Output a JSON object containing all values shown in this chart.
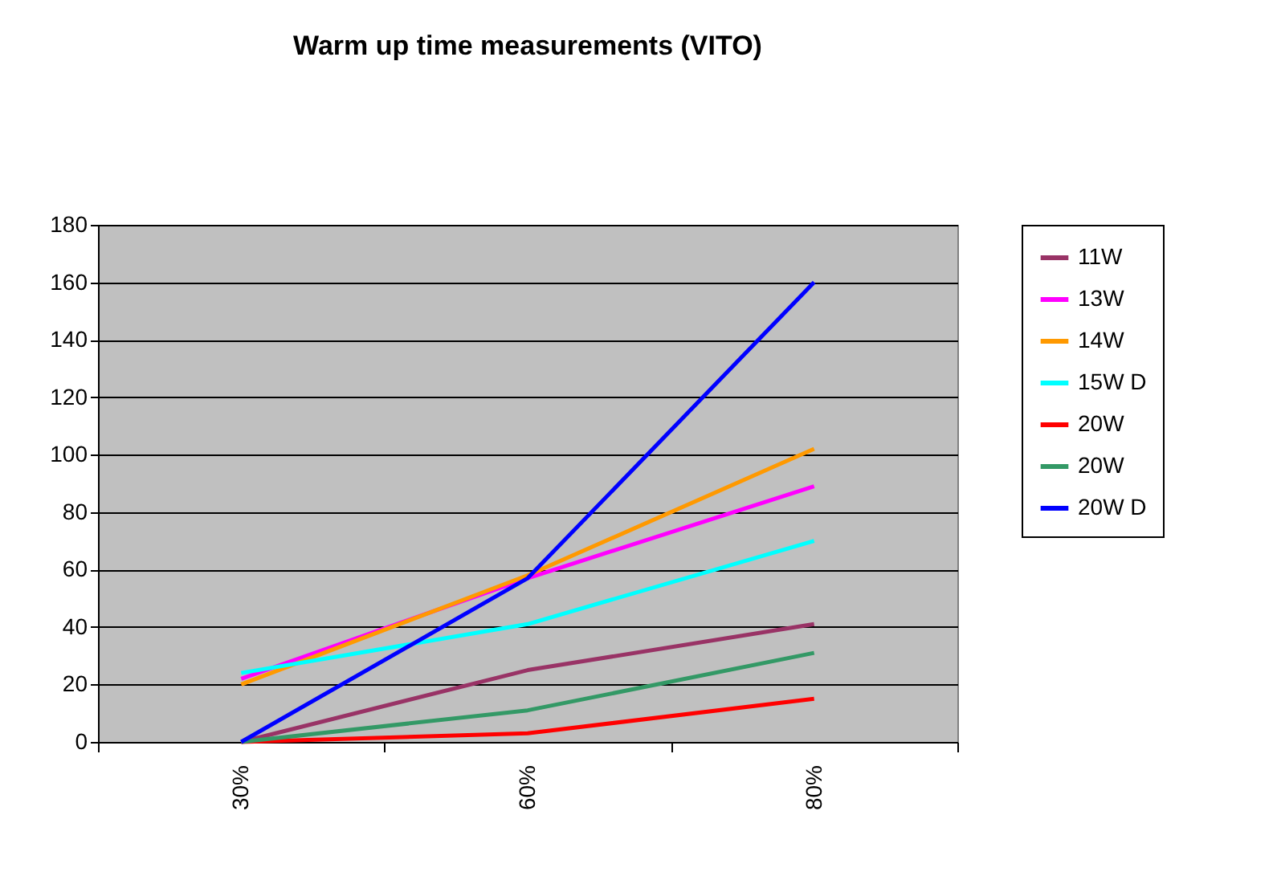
{
  "chart_data": {
    "type": "line",
    "title": "Warm up time measurements (VITO)",
    "categories": [
      "30%",
      "60%",
      "80%"
    ],
    "series": [
      {
        "name": "11W",
        "color": "#993366",
        "values": [
          0,
          25,
          41
        ]
      },
      {
        "name": "13W",
        "color": "#ff00ff",
        "values": [
          22,
          57,
          89
        ]
      },
      {
        "name": "14W",
        "color": "#ff9900",
        "values": [
          20,
          58,
          102
        ]
      },
      {
        "name": "15W D",
        "color": "#00ffff",
        "values": [
          24,
          41,
          70
        ]
      },
      {
        "name": "20W",
        "color": "#ff0000",
        "values": [
          0,
          3,
          15
        ]
      },
      {
        "name": "20W",
        "color": "#339966",
        "values": [
          0,
          11,
          31
        ]
      },
      {
        "name": "20W D",
        "color": "#0000ff",
        "values": [
          0,
          57,
          160
        ]
      }
    ],
    "ylim": [
      0,
      180
    ],
    "yticks": [
      0,
      20,
      40,
      60,
      80,
      100,
      120,
      140,
      160,
      180
    ],
    "grid": "y",
    "legend": "right",
    "marker": "none",
    "line_style": "solid"
  }
}
